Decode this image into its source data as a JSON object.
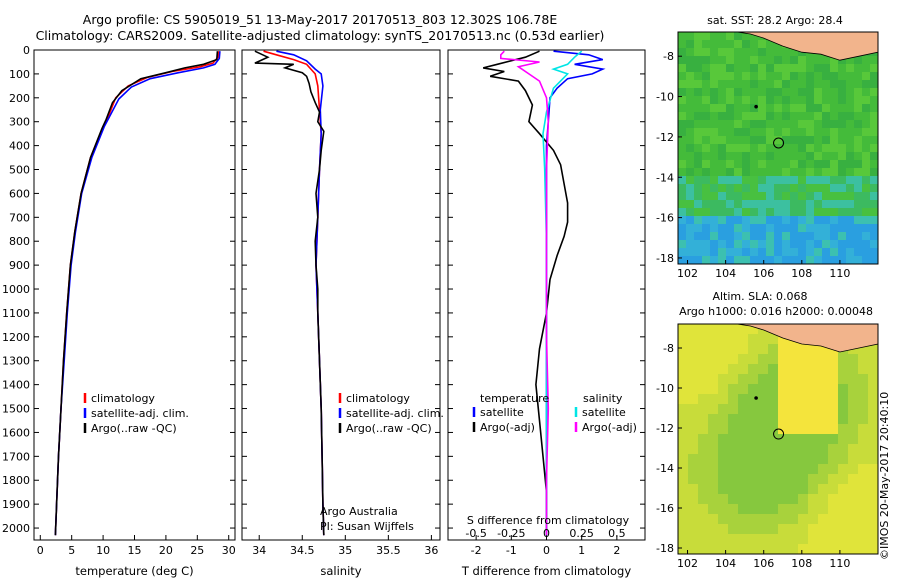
{
  "header": {
    "line1": "Argo profile: CS 5905019_51 13-May-2017 20170513_803 12.302S 106.78E",
    "line2": "Climatology: CARS2009. Satellite-adjusted climatology: synTS_20170513.nc (0.53d earlier)"
  },
  "stamp": "©IMOS 20-May-2017 20:40:10",
  "colors": {
    "climatology": "#ff0000",
    "satellite": "#0000ff",
    "argo": "#000000",
    "salinity_satellite": "#00e5e5",
    "salinity_argo": "#ff00ff",
    "land": "#f2b48c"
  },
  "chart_data": [
    {
      "id": "temperature",
      "type": "line",
      "xlabel": "temperature (deg C)",
      "xlim": [
        -1,
        31
      ],
      "ylim": [
        2050,
        0
      ],
      "xticks": [
        "0",
        "5",
        "10",
        "15",
        "20",
        "25",
        "30"
      ],
      "yticks": [
        "0",
        "100",
        "200",
        "300",
        "400",
        "500",
        "600",
        "700",
        "800",
        "900",
        "1000",
        "1100",
        "1200",
        "1300",
        "1400",
        "1500",
        "1600",
        "1700",
        "1800",
        "1900",
        "2000"
      ],
      "legend": [
        "climatology",
        "satellite-adj. clim.",
        "Argo(..raw -QC)"
      ],
      "series": [
        {
          "name": "climatology",
          "color": "#ff0000",
          "points": [
            [
              28.4,
              5
            ],
            [
              28.3,
              30
            ],
            [
              27.5,
              55
            ],
            [
              25.5,
              70
            ],
            [
              21,
              90
            ],
            [
              17,
              115
            ],
            [
              14,
              150
            ],
            [
              12,
              200
            ],
            [
              10.8,
              280
            ],
            [
              10,
              320
            ],
            [
              8,
              450
            ],
            [
              6.5,
              600
            ],
            [
              5.5,
              760
            ],
            [
              4.8,
              900
            ],
            [
              4.2,
              1100
            ],
            [
              3.7,
              1300
            ],
            [
              3.3,
              1500
            ],
            [
              2.9,
              1700
            ],
            [
              2.6,
              1900
            ],
            [
              2.4,
              2030
            ]
          ]
        },
        {
          "name": "satellite-adj. clim.",
          "color": "#0000ff",
          "points": [
            [
              28.6,
              5
            ],
            [
              28.5,
              35
            ],
            [
              27.8,
              60
            ],
            [
              26,
              75
            ],
            [
              22,
              95
            ],
            [
              17.5,
              120
            ],
            [
              14.5,
              155
            ],
            [
              12.5,
              205
            ],
            [
              11,
              280
            ],
            [
              10.2,
              320
            ],
            [
              8.2,
              450
            ],
            [
              6.6,
              600
            ],
            [
              5.6,
              760
            ],
            [
              4.9,
              900
            ],
            [
              4.3,
              1100
            ],
            [
              3.8,
              1300
            ],
            [
              3.3,
              1500
            ],
            [
              2.9,
              1700
            ],
            [
              2.6,
              1900
            ],
            [
              2.4,
              2030
            ]
          ]
        },
        {
          "name": "Argo(..raw -QC)",
          "color": "#000000",
          "points": [
            [
              28.2,
              5
            ],
            [
              28.1,
              40
            ],
            [
              26,
              60
            ],
            [
              23,
              75
            ],
            [
              20,
              95
            ],
            [
              16,
              120
            ],
            [
              13,
              170
            ],
            [
              11.5,
              220
            ],
            [
              10.5,
              290
            ],
            [
              9.8,
              330
            ],
            [
              8,
              450
            ],
            [
              6.5,
              600
            ],
            [
              5.5,
              760
            ],
            [
              4.8,
              900
            ],
            [
              4.2,
              1100
            ],
            [
              3.7,
              1300
            ],
            [
              3.3,
              1500
            ],
            [
              2.9,
              1700
            ],
            [
              2.6,
              1900
            ],
            [
              2.4,
              2030
            ]
          ]
        }
      ]
    },
    {
      "id": "salinity",
      "type": "line",
      "xlabel": "salinity",
      "xlim": [
        33.8,
        36.1
      ],
      "ylim": [
        2050,
        0
      ],
      "xticks": [
        "34",
        "34.5",
        "35",
        "35.5",
        "36"
      ],
      "legend": [
        "climatology",
        "satellite-adj. clim.",
        "Argo(..raw -QC)"
      ],
      "annotation": [
        "Argo Australia",
        "PI: Susan Wijffels"
      ],
      "series": [
        {
          "name": "climatology",
          "color": "#ff0000",
          "points": [
            [
              34.05,
              5
            ],
            [
              34.2,
              20
            ],
            [
              34.4,
              40
            ],
            [
              34.55,
              60
            ],
            [
              34.6,
              80
            ],
            [
              34.65,
              100
            ],
            [
              34.68,
              150
            ],
            [
              34.7,
              250
            ],
            [
              34.72,
              350
            ],
            [
              34.7,
              500
            ],
            [
              34.68,
              700
            ],
            [
              34.66,
              900
            ],
            [
              34.68,
              1100
            ],
            [
              34.7,
              1300
            ],
            [
              34.72,
              1500
            ],
            [
              34.73,
              1700
            ],
            [
              34.74,
              1900
            ],
            [
              34.75,
              2030
            ]
          ]
        },
        {
          "name": "satellite-adj. clim.",
          "color": "#0000ff",
          "points": [
            [
              34.2,
              5
            ],
            [
              34.4,
              20
            ],
            [
              34.55,
              45
            ],
            [
              34.65,
              80
            ],
            [
              34.72,
              100
            ],
            [
              34.74,
              150
            ],
            [
              34.71,
              250
            ],
            [
              34.72,
              350
            ],
            [
              34.7,
              500
            ],
            [
              34.68,
              700
            ],
            [
              34.66,
              900
            ],
            [
              34.68,
              1100
            ],
            [
              34.7,
              1300
            ],
            [
              34.72,
              1500
            ],
            [
              34.73,
              1700
            ],
            [
              34.74,
              1900
            ],
            [
              34.75,
              2030
            ]
          ]
        },
        {
          "name": "Argo(..raw -QC)",
          "color": "#000000",
          "points": [
            [
              33.95,
              5
            ],
            [
              34.1,
              30
            ],
            [
              33.95,
              55
            ],
            [
              34.4,
              60
            ],
            [
              34.3,
              75
            ],
            [
              34.5,
              95
            ],
            [
              34.55,
              110
            ],
            [
              34.58,
              140
            ],
            [
              34.6,
              175
            ],
            [
              34.65,
              220
            ],
            [
              34.7,
              260
            ],
            [
              34.68,
              300
            ],
            [
              34.75,
              340
            ],
            [
              34.72,
              420
            ],
            [
              34.7,
              500
            ],
            [
              34.66,
              600
            ],
            [
              34.68,
              700
            ],
            [
              34.65,
              800
            ],
            [
              34.66,
              900
            ],
            [
              34.68,
              1000
            ],
            [
              34.68,
              1100
            ],
            [
              34.7,
              1300
            ],
            [
              34.72,
              1500
            ],
            [
              34.73,
              1700
            ],
            [
              34.74,
              1900
            ],
            [
              34.75,
              2030
            ]
          ]
        }
      ]
    },
    {
      "id": "difference",
      "type": "line",
      "xlabel": "T difference from climatology",
      "xlabel2": "S difference from climatology",
      "xlim": [
        -2.8,
        2.8
      ],
      "ylim": [
        2050,
        0
      ],
      "xticks": [
        "-2",
        "-1",
        "0",
        "1",
        "2"
      ],
      "xticks2": [
        "-0.5",
        "-0.25",
        "0",
        "0.25",
        "0.5"
      ],
      "legend_left_title": "temperature",
      "legend_right_title": "salinity",
      "legend_left": [
        "satellite",
        "Argo(-adj)"
      ],
      "legend_right": [
        "satellite",
        "Argo(-adj)"
      ],
      "series": [
        {
          "name": "temperature satellite",
          "color": "#0000ff",
          "points": [
            [
              0.2,
              5
            ],
            [
              1.2,
              20
            ],
            [
              1.6,
              40
            ],
            [
              0.8,
              60
            ],
            [
              1.6,
              80
            ],
            [
              1.3,
              100
            ],
            [
              0.6,
              120
            ],
            [
              0.3,
              160
            ],
            [
              0.1,
              200
            ],
            [
              0.05,
              300
            ],
            [
              0,
              400
            ],
            [
              0,
              600
            ],
            [
              0,
              900
            ],
            [
              0,
              1200
            ],
            [
              0,
              1500
            ],
            [
              0,
              1800
            ],
            [
              0,
              2030
            ]
          ]
        },
        {
          "name": "temperature Argo(-adj)",
          "color": "#000000",
          "points": [
            [
              -0.2,
              5
            ],
            [
              -0.6,
              30
            ],
            [
              -1.4,
              60
            ],
            [
              -1.8,
              75
            ],
            [
              -1.2,
              90
            ],
            [
              -1.6,
              110
            ],
            [
              -0.8,
              130
            ],
            [
              -0.6,
              170
            ],
            [
              -0.4,
              230
            ],
            [
              -0.5,
              300
            ],
            [
              -0.2,
              350
            ],
            [
              0.2,
              420
            ],
            [
              0.4,
              480
            ],
            [
              0.5,
              560
            ],
            [
              0.6,
              640
            ],
            [
              0.6,
              720
            ],
            [
              0.5,
              780
            ],
            [
              0.3,
              860
            ],
            [
              0.1,
              960
            ],
            [
              0,
              1100
            ],
            [
              -0.2,
              1250
            ],
            [
              -0.3,
              1400
            ],
            [
              -0.2,
              1550
            ],
            [
              -0.1,
              1700
            ],
            [
              0,
              1850
            ],
            [
              0,
              2030
            ]
          ]
        },
        {
          "name": "salinity satellite",
          "color": "#00e5e5",
          "points": [
            [
              1.0,
              5
            ],
            [
              0.8,
              30
            ],
            [
              0.6,
              60
            ],
            [
              0.2,
              80
            ],
            [
              0.6,
              100
            ],
            [
              0.2,
              160
            ],
            [
              0.0,
              260
            ],
            [
              -0.1,
              350
            ],
            [
              -0.05,
              500
            ],
            [
              0,
              800
            ],
            [
              0,
              1200
            ],
            [
              0,
              1600
            ],
            [
              0,
              2030
            ]
          ]
        },
        {
          "name": "salinity Argo(-adj)",
          "color": "#ff00ff",
          "points": [
            [
              -1.2,
              5
            ],
            [
              -1.3,
              20
            ],
            [
              -1.3,
              35
            ],
            [
              -0.2,
              50
            ],
            [
              -0.8,
              70
            ],
            [
              -0.5,
              100
            ],
            [
              -0.2,
              130
            ],
            [
              0,
              200
            ],
            [
              0.05,
              300
            ],
            [
              0,
              500
            ],
            [
              0,
              800
            ],
            [
              0,
              1200
            ],
            [
              0.05,
              1500
            ],
            [
              0,
              1800
            ],
            [
              0,
              2030
            ]
          ]
        }
      ]
    },
    {
      "id": "sst_map",
      "type": "heatmap",
      "title": "sat. SST: 28.2 Argo: 28.4",
      "xlim": [
        101.5,
        112
      ],
      "ylim": [
        -18.3,
        -6.8
      ],
      "xticks": [
        "102",
        "104",
        "106",
        "108",
        "110"
      ],
      "yticks": [
        "-8",
        "-10",
        "-12",
        "-14",
        "-16",
        "-18"
      ],
      "argo_position": [
        106.78,
        -12.302
      ],
      "previous_position": [
        105.6,
        -10.5
      ]
    },
    {
      "id": "sla_map",
      "type": "heatmap",
      "title": "Altim. SLA: 0.068",
      "subtitle": "Argo h1000: 0.016 h2000: 0.00048",
      "xlim": [
        101.5,
        112
      ],
      "ylim": [
        -18.3,
        -6.8
      ],
      "xticks": [
        "102",
        "104",
        "106",
        "108",
        "110"
      ],
      "yticks": [
        "-8",
        "-10",
        "-12",
        "-14",
        "-16",
        "-18"
      ],
      "argo_position": [
        106.78,
        -12.302
      ],
      "previous_position": [
        105.6,
        -10.5
      ]
    }
  ]
}
